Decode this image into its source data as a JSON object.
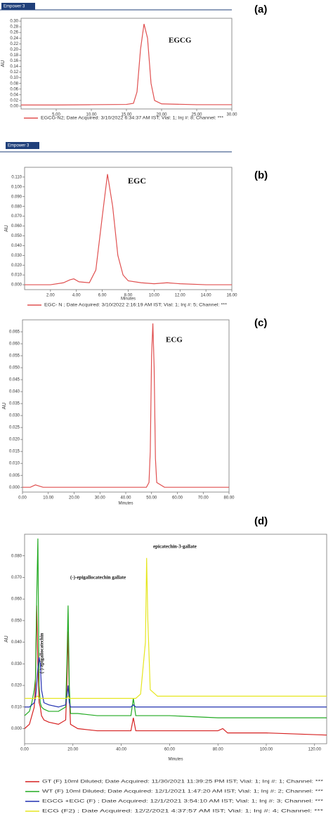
{
  "chart_data": [
    {
      "type": "line",
      "panel_label": "(a)",
      "logo": "Empower 3",
      "annotations": [
        "EGCG"
      ],
      "y_label": "AU",
      "x": [
        0,
        5,
        10,
        15,
        16,
        16.5,
        17,
        17.5,
        18,
        18.5,
        19,
        20,
        25,
        30
      ],
      "series": [
        {
          "name": "EGCG-N2; Date Acquired: 3/10/2022 6:34:37 AM IST; Vial: 1; Inj #: 8; Channel: ***",
          "color": "#e05050",
          "values": [
            0.004,
            0.004,
            0.005,
            0.006,
            0.01,
            0.05,
            0.2,
            0.29,
            0.24,
            0.08,
            0.02,
            0.008,
            0.005,
            0.005
          ]
        }
      ],
      "xlim": [
        0,
        30
      ],
      "ylim": [
        -0.01,
        0.31
      ],
      "xticks": [
        {
          "value": 5,
          "label": "5.00"
        },
        {
          "value": 10,
          "label": "10.00"
        },
        {
          "value": 15,
          "label": "15.00"
        },
        {
          "value": 20,
          "label": "20.00"
        },
        {
          "value": 25,
          "label": "25.00"
        },
        {
          "value": 30,
          "label": "30.00"
        }
      ],
      "yticks": [
        {
          "value": 0,
          "label": "0.00"
        },
        0.02,
        0.04,
        0.06,
        0.08,
        {
          "value": 0.1,
          "label": "0.10"
        },
        0.12,
        0.14,
        0.16,
        0.18,
        {
          "value": 0.2,
          "label": "0.20"
        },
        0.22,
        0.24,
        0.26,
        0.28,
        {
          "value": 0.3,
          "label": "0.30"
        }
      ]
    },
    {
      "type": "line",
      "panel_label": "(b)",
      "logo": "Empower 3",
      "annotations": [
        "EGC"
      ],
      "y_label": "AU",
      "x_label": "Minutes",
      "x": [
        0,
        2,
        3,
        3.5,
        3.8,
        4.2,
        5,
        5.5,
        6,
        6.4,
        6.8,
        7.2,
        7.6,
        8,
        9,
        10,
        11,
        12,
        14,
        16
      ],
      "series": [
        {
          "name": "EGC- N ; Date Acquired: 3/10/2022 2:16:19 AM IST; Vial: 1; Inj #: 5; Channel: ***",
          "color": "#e05050",
          "values": [
            0.0,
            0.0,
            0.002,
            0.005,
            0.006,
            0.003,
            0.002,
            0.015,
            0.07,
            0.113,
            0.08,
            0.03,
            0.01,
            0.004,
            0.002,
            0.001,
            0.002,
            0.001,
            0.0,
            0.0
          ]
        }
      ],
      "xlim": [
        0,
        16
      ],
      "ylim": [
        -0.005,
        0.12
      ],
      "xticks": [
        {
          "value": 2,
          "label": "2.00"
        },
        {
          "value": 4,
          "label": "4.00"
        },
        {
          "value": 6,
          "label": "6.00"
        },
        {
          "value": 8,
          "label": "8.00"
        },
        {
          "value": 10,
          "label": "10.00"
        },
        {
          "value": 12,
          "label": "12.00"
        },
        {
          "value": 14,
          "label": "14.00"
        },
        {
          "value": 16,
          "label": "16.00"
        }
      ],
      "yticks": [
        {
          "value": 0,
          "label": "0.000"
        },
        {
          "value": 0.01,
          "label": "0.010"
        },
        {
          "value": 0.02,
          "label": "0.020"
        },
        {
          "value": 0.03,
          "label": "0.030"
        },
        {
          "value": 0.04,
          "label": "0.040"
        },
        {
          "value": 0.05,
          "label": "0.050"
        },
        {
          "value": 0.06,
          "label": "0.060"
        },
        {
          "value": 0.07,
          "label": "0.070"
        },
        {
          "value": 0.08,
          "label": "0.080"
        },
        {
          "value": 0.09,
          "label": "0.090"
        },
        {
          "value": 0.1,
          "label": "0.100"
        },
        {
          "value": 0.11,
          "label": "0.110"
        }
      ]
    },
    {
      "type": "line",
      "panel_label": "(c)",
      "annotations": [
        "ECG"
      ],
      "y_label": "AU",
      "x_label": "Minutes",
      "x": [
        0,
        3,
        5,
        8,
        20,
        40,
        48,
        49,
        49.5,
        50,
        50.5,
        51,
        51.5,
        52,
        55,
        60,
        80
      ],
      "series": [
        {
          "name": null,
          "color": "#e05050",
          "values": [
            0.0,
            0.0,
            0.001,
            0.0,
            0.0,
            0.0,
            0.0,
            0.002,
            0.015,
            0.055,
            0.0685,
            0.05,
            0.012,
            0.002,
            0.0,
            0.0,
            0.0
          ]
        }
      ],
      "xlim": [
        0,
        80
      ],
      "ylim": [
        -0.002,
        0.07
      ],
      "xticks": [
        {
          "value": 0,
          "label": "0.00"
        },
        {
          "value": 10,
          "label": "10.00"
        },
        {
          "value": 20,
          "label": "20.00"
        },
        {
          "value": 30,
          "label": "30.00"
        },
        {
          "value": 40,
          "label": "40.00"
        },
        {
          "value": 50,
          "label": "50.00"
        },
        {
          "value": 60,
          "label": "60.00"
        },
        {
          "value": 70,
          "label": "70.00"
        },
        {
          "value": 80,
          "label": "80.00"
        }
      ],
      "yticks": [
        {
          "value": 0,
          "label": "0.000"
        },
        0.005,
        {
          "value": 0.01,
          "label": "0.010"
        },
        0.015,
        {
          "value": 0.02,
          "label": "0.020"
        },
        0.025,
        {
          "value": 0.03,
          "label": "0.030"
        },
        0.035,
        {
          "value": 0.04,
          "label": "0.040"
        },
        0.045,
        {
          "value": 0.05,
          "label": "0.050"
        },
        0.055,
        {
          "value": 0.06,
          "label": "0.060"
        },
        0.065
      ]
    },
    {
      "type": "line",
      "panel_label": "(d)",
      "annotations": [
        "(-)-epigallocatechin",
        "(-)-epigallocatechin  gallate",
        "epicatechin-3-gallate"
      ],
      "y_label": "AU",
      "x_label": "Minutes",
      "x": [
        0,
        2,
        3,
        4,
        4.5,
        5,
        5.5,
        6,
        6.5,
        7,
        8,
        10,
        14,
        17,
        17.5,
        18,
        18.5,
        19,
        22,
        30,
        40,
        44,
        45,
        46,
        48,
        50,
        50.5,
        51,
        52,
        55,
        60,
        80,
        82,
        84,
        100,
        125
      ],
      "series": [
        {
          "name": "GT (F) 10ml Diluted;   Date Acquired: 11/30/2021 11:39:25 PM IST;   Vial: 1;   Inj #: 1;   Channel: ***",
          "color": "#d62020",
          "values": [
            0.0,
            0.002,
            0.006,
            0.01,
            0.02,
            0.057,
            0.03,
            0.012,
            0.01,
            0.006,
            0.004,
            0.003,
            0.002,
            0.004,
            0.02,
            0.045,
            0.015,
            0.002,
            0.0,
            -0.001,
            -0.001,
            -0.001,
            0.005,
            -0.001,
            -0.001,
            -0.001,
            -0.001,
            -0.001,
            -0.001,
            -0.001,
            -0.001,
            -0.001,
            0.0,
            -0.002,
            -0.002,
            -0.003
          ]
        },
        {
          "name": "WT (F) 10ml Diluted;   Date Acquired: 12/1/2021 1:47:20 AM IST;   Vial: 1;   Inj #: 2;   Channel: ***",
          "color": "#22aa22",
          "values": [
            0.006,
            0.008,
            0.012,
            0.018,
            0.023,
            0.06,
            0.088,
            0.02,
            0.012,
            0.01,
            0.009,
            0.008,
            0.008,
            0.01,
            0.03,
            0.057,
            0.02,
            0.007,
            0.007,
            0.006,
            0.006,
            0.006,
            0.014,
            0.006,
            0.006,
            0.006,
            0.006,
            0.006,
            0.006,
            0.006,
            0.006,
            0.005,
            0.005,
            0.005,
            0.005,
            0.005
          ]
        },
        {
          "name": "EGCG +EGC (F) ;   Date Acquired: 12/1/2021 3:54:10 AM IST;   Vial: 1;   Inj #: 3;   Channel: ***",
          "color": "#2030b0",
          "values": [
            0.01,
            0.01,
            0.011,
            0.012,
            0.014,
            0.02,
            0.028,
            0.033,
            0.03,
            0.018,
            0.012,
            0.011,
            0.01,
            0.011,
            0.015,
            0.02,
            0.012,
            0.01,
            0.01,
            0.01,
            0.01,
            0.01,
            0.011,
            0.01,
            0.01,
            0.01,
            0.01,
            0.01,
            0.01,
            0.01,
            0.01,
            0.01,
            0.01,
            0.01,
            0.01,
            0.01
          ]
        },
        {
          "name": "ECG  (F2) ;   Date Acquired: 12/2/2021 4:37:57 AM IST;   Vial: 1;   Inj #: 4;   Channel: ***",
          "color": "#e6e620",
          "values": [
            0.014,
            0.014,
            0.014,
            0.014,
            0.014,
            0.015,
            0.015,
            0.014,
            0.014,
            0.014,
            0.014,
            0.014,
            0.014,
            0.014,
            0.014,
            0.015,
            0.014,
            0.014,
            0.014,
            0.014,
            0.014,
            0.014,
            0.014,
            0.014,
            0.016,
            0.04,
            0.079,
            0.05,
            0.018,
            0.015,
            0.015,
            0.015,
            0.015,
            0.015,
            0.015,
            0.015
          ]
        }
      ],
      "xlim": [
        0,
        125
      ],
      "ylim": [
        -0.007,
        0.09
      ],
      "xticks": [
        {
          "value": 0,
          "label": "0.00"
        },
        {
          "value": 20,
          "label": "20.00"
        },
        {
          "value": 40,
          "label": "40.00"
        },
        {
          "value": 60,
          "label": "60.00"
        },
        {
          "value": 80,
          "label": "80.00"
        },
        {
          "value": 100,
          "label": "100.00"
        },
        {
          "value": 120,
          "label": "120.00"
        }
      ],
      "yticks": [
        {
          "value": 0,
          "label": "0.000"
        },
        {
          "value": 0.01,
          "label": "0.010"
        },
        {
          "value": 0.02,
          "label": "0.020"
        },
        {
          "value": 0.03,
          "label": "0.030"
        },
        {
          "value": 0.04,
          "label": "0.040"
        },
        {
          "value": 0.05,
          "label": "0.050"
        },
        {
          "value": 0.06,
          "label": "0.060"
        },
        {
          "value": 0.07,
          "label": "0.070"
        },
        {
          "value": 0.08,
          "label": "0.080"
        }
      ]
    }
  ]
}
